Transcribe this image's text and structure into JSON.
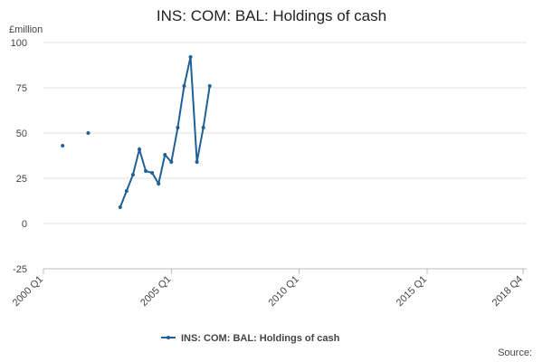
{
  "chart_data": {
    "type": "line",
    "title": "INS: COM: BAL: Holdings of cash",
    "y_label": "£million",
    "source": "Source:",
    "categories": [
      "2000 Q1",
      null,
      null,
      null,
      null,
      null,
      null,
      null,
      null,
      null,
      null,
      null,
      null,
      null,
      null,
      null,
      null,
      null,
      null,
      null,
      "2005 Q1",
      null,
      null,
      null,
      null,
      null,
      null,
      null,
      null,
      null,
      null,
      null,
      null,
      null,
      null,
      null,
      null,
      null,
      null,
      null,
      "2010 Q1",
      null,
      null,
      null,
      null,
      null,
      null,
      null,
      null,
      null,
      null,
      null,
      null,
      null,
      null,
      null,
      null,
      null,
      null,
      null,
      "2015 Q1",
      null,
      null,
      null,
      null,
      null,
      null,
      null,
      null,
      null,
      null,
      null,
      null,
      null,
      null,
      "2018 Q4"
    ],
    "series": [
      {
        "name": "INS: COM: BAL: Holdings of cash",
        "color": "#206095",
        "values": [
          null,
          null,
          null,
          43,
          null,
          null,
          null,
          50,
          null,
          null,
          null,
          null,
          9,
          18,
          27,
          41,
          29,
          28,
          22,
          38,
          34,
          53,
          76,
          92,
          34,
          53,
          76,
          null,
          null,
          null,
          null,
          null,
          null,
          null,
          null,
          null,
          null,
          null,
          null,
          null,
          null,
          null,
          null,
          null,
          null,
          null,
          null,
          null,
          null,
          null,
          null,
          null,
          null,
          null,
          null,
          null,
          null,
          null,
          null,
          null,
          null,
          null,
          null,
          null,
          null,
          null,
          null,
          null,
          null,
          null,
          null,
          null,
          null,
          null,
          null,
          null
        ]
      }
    ],
    "ylim": [
      -25,
      100
    ],
    "yticks": [
      -25,
      0,
      25,
      50,
      75,
      100
    ],
    "grid": true,
    "legend": "bottom"
  }
}
